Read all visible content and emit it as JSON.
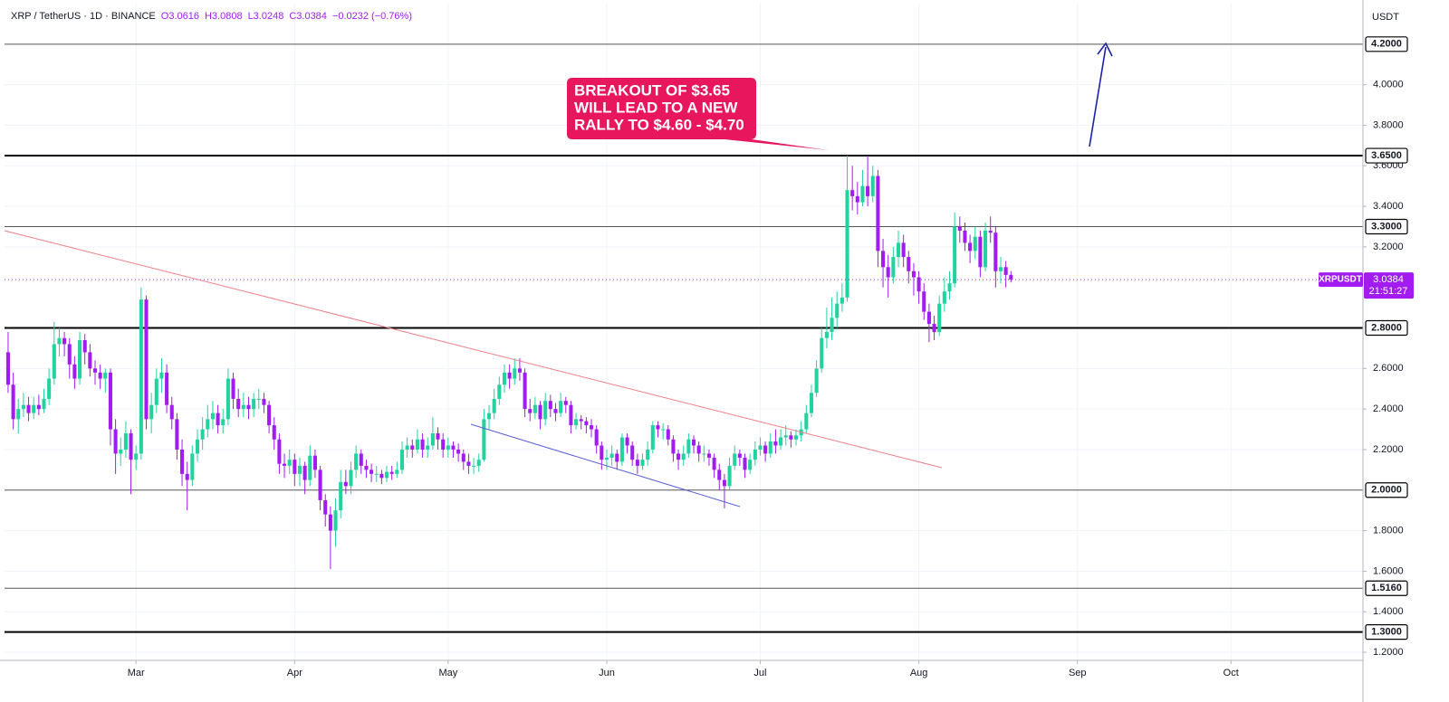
{
  "chart_data": {
    "type": "candlestick",
    "header": {
      "symbol": "XRP / TetherUS · 1D · BINANCE",
      "ohlc": [
        "O3.0616",
        "H3.0808",
        "L3.0248",
        "C3.0384",
        "−0.0232 (−0.76%)"
      ]
    },
    "currency": "USDT",
    "up_color": "#22d3a0",
    "down_color": "#a21cf2",
    "xlim": [
      -0.7,
      264.8
    ],
    "xticks": [
      {
        "value": 25,
        "label": "Mar"
      },
      {
        "value": 56,
        "label": "Apr"
      },
      {
        "value": 86,
        "label": "May"
      },
      {
        "value": 117,
        "label": "Jun"
      },
      {
        "value": 147,
        "label": "Jul"
      },
      {
        "value": 178,
        "label": "Aug"
      },
      {
        "value": 209,
        "label": "Sep"
      },
      {
        "value": 239,
        "label": "Oct"
      }
    ],
    "ylim": [
      1.16,
      4.4
    ],
    "yticks": [
      {
        "value": 1.2,
        "label": "1.2000"
      },
      {
        "value": 1.4,
        "label": "1.4000"
      },
      {
        "value": 1.6,
        "label": "1.6000"
      },
      {
        "value": 1.8,
        "label": "1.8000"
      },
      {
        "value": 2.2,
        "label": "2.2000"
      },
      {
        "value": 2.4,
        "label": "2.4000"
      },
      {
        "value": 2.6,
        "label": "2.6000"
      },
      {
        "value": 3.2,
        "label": "3.2000"
      },
      {
        "value": 3.4,
        "label": "3.4000"
      },
      {
        "value": 3.6,
        "label": "3.6000"
      },
      {
        "value": 3.8,
        "label": "3.8000"
      },
      {
        "value": 4.0,
        "label": "4.0000"
      }
    ],
    "levels": [
      {
        "value": 4.2,
        "label": "4.2000",
        "emphasis": false
      },
      {
        "value": 3.65,
        "label": "3.6500",
        "emphasis": true
      },
      {
        "value": 3.3,
        "label": "3.3000",
        "emphasis": false
      },
      {
        "value": 2.8,
        "label": "2.8000",
        "emphasis": true
      },
      {
        "value": 2.0,
        "label": "2.0000",
        "emphasis": false
      },
      {
        "value": 1.516,
        "label": "1.5160",
        "emphasis": false
      },
      {
        "value": 1.3,
        "label": "1.3000",
        "emphasis": true
      }
    ],
    "grid": true,
    "price_badge": {
      "symbol": "XRPUSDT",
      "countdown": "21:51:27"
    },
    "annotation": [
      "BREAKOUT OF $3.65",
      "WILL LEAD TO A NEW",
      "RALLY TO $4.60 - $4.70"
    ],
    "ohlc": [
      [
        2.68,
        2.78,
        2.48,
        2.52
      ],
      [
        2.52,
        2.58,
        2.3,
        2.35
      ],
      [
        2.35,
        2.45,
        2.28,
        2.4
      ],
      [
        2.4,
        2.48,
        2.36,
        2.42
      ],
      [
        2.42,
        2.46,
        2.34,
        2.38
      ],
      [
        2.38,
        2.46,
        2.35,
        2.42
      ],
      [
        2.42,
        2.47,
        2.37,
        2.4
      ],
      [
        2.4,
        2.5,
        2.38,
        2.45
      ],
      [
        2.45,
        2.6,
        2.42,
        2.55
      ],
      [
        2.55,
        2.83,
        2.52,
        2.72
      ],
      [
        2.72,
        2.8,
        2.66,
        2.75
      ],
      [
        2.75,
        2.78,
        2.66,
        2.72
      ],
      [
        2.72,
        2.75,
        2.55,
        2.62
      ],
      [
        2.62,
        2.66,
        2.5,
        2.55
      ],
      [
        2.55,
        2.78,
        2.52,
        2.74
      ],
      [
        2.74,
        2.77,
        2.62,
        2.68
      ],
      [
        2.68,
        2.72,
        2.56,
        2.6
      ],
      [
        2.6,
        2.64,
        2.52,
        2.58
      ],
      [
        2.58,
        2.62,
        2.5,
        2.55
      ],
      [
        2.55,
        2.6,
        2.48,
        2.58
      ],
      [
        2.58,
        2.6,
        2.22,
        2.3
      ],
      [
        2.3,
        2.35,
        2.08,
        2.18
      ],
      [
        2.18,
        2.26,
        2.12,
        2.2
      ],
      [
        2.2,
        2.34,
        2.16,
        2.28
      ],
      [
        2.28,
        2.3,
        1.98,
        2.15
      ],
      [
        2.15,
        2.22,
        2.1,
        2.18
      ],
      [
        2.18,
        3.0,
        2.15,
        2.94
      ],
      [
        2.94,
        2.96,
        2.3,
        2.35
      ],
      [
        2.35,
        2.48,
        2.28,
        2.42
      ],
      [
        2.42,
        2.6,
        2.38,
        2.55
      ],
      [
        2.55,
        2.65,
        2.48,
        2.58
      ],
      [
        2.58,
        2.62,
        2.38,
        2.42
      ],
      [
        2.42,
        2.46,
        2.3,
        2.35
      ],
      [
        2.35,
        2.38,
        2.15,
        2.2
      ],
      [
        2.2,
        2.25,
        2.02,
        2.08
      ],
      [
        2.08,
        2.14,
        1.9,
        2.05
      ],
      [
        2.05,
        2.22,
        2.02,
        2.18
      ],
      [
        2.18,
        2.3,
        2.14,
        2.25
      ],
      [
        2.25,
        2.36,
        2.2,
        2.3
      ],
      [
        2.3,
        2.42,
        2.26,
        2.35
      ],
      [
        2.35,
        2.44,
        2.3,
        2.38
      ],
      [
        2.38,
        2.42,
        2.28,
        2.32
      ],
      [
        2.32,
        2.4,
        2.28,
        2.35
      ],
      [
        2.35,
        2.6,
        2.32,
        2.55
      ],
      [
        2.55,
        2.58,
        2.4,
        2.45
      ],
      [
        2.45,
        2.5,
        2.36,
        2.4
      ],
      [
        2.4,
        2.48,
        2.36,
        2.42
      ],
      [
        2.42,
        2.46,
        2.35,
        2.4
      ],
      [
        2.4,
        2.48,
        2.36,
        2.45
      ],
      [
        2.45,
        2.5,
        2.4,
        2.45
      ],
      [
        2.45,
        2.48,
        2.38,
        2.42
      ],
      [
        2.42,
        2.44,
        2.28,
        2.32
      ],
      [
        2.32,
        2.36,
        2.2,
        2.25
      ],
      [
        2.25,
        2.28,
        2.08,
        2.13
      ],
      [
        2.13,
        2.18,
        2.06,
        2.12
      ],
      [
        2.12,
        2.2,
        2.08,
        2.15
      ],
      [
        2.15,
        2.18,
        2.02,
        2.08
      ],
      [
        2.08,
        2.16,
        2.02,
        2.12
      ],
      [
        2.12,
        2.14,
        1.98,
        2.05
      ],
      [
        2.05,
        2.22,
        2.02,
        2.17
      ],
      [
        2.17,
        2.2,
        2.06,
        2.1
      ],
      [
        2.1,
        2.12,
        1.9,
        1.95
      ],
      [
        1.95,
        1.98,
        1.82,
        1.88
      ],
      [
        1.88,
        1.92,
        1.61,
        1.8
      ],
      [
        1.8,
        1.96,
        1.72,
        1.9
      ],
      [
        1.9,
        2.1,
        1.86,
        2.04
      ],
      [
        2.04,
        2.1,
        1.98,
        2.02
      ],
      [
        2.02,
        2.14,
        1.98,
        2.1
      ],
      [
        2.1,
        2.22,
        2.06,
        2.18
      ],
      [
        2.18,
        2.2,
        2.08,
        2.12
      ],
      [
        2.12,
        2.15,
        2.06,
        2.1
      ],
      [
        2.1,
        2.13,
        2.04,
        2.08
      ],
      [
        2.08,
        2.12,
        2.04,
        2.08
      ],
      [
        2.08,
        2.1,
        2.03,
        2.06
      ],
      [
        2.06,
        2.12,
        2.04,
        2.09
      ],
      [
        2.09,
        2.12,
        2.05,
        2.08
      ],
      [
        2.08,
        2.14,
        2.06,
        2.1
      ],
      [
        2.1,
        2.24,
        2.08,
        2.2
      ],
      [
        2.2,
        2.26,
        2.16,
        2.22
      ],
      [
        2.22,
        2.25,
        2.16,
        2.2
      ],
      [
        2.2,
        2.3,
        2.18,
        2.25
      ],
      [
        2.25,
        2.28,
        2.16,
        2.2
      ],
      [
        2.2,
        2.26,
        2.16,
        2.22
      ],
      [
        2.22,
        2.36,
        2.2,
        2.28
      ],
      [
        2.28,
        2.31,
        2.2,
        2.25
      ],
      [
        2.25,
        2.28,
        2.16,
        2.2
      ],
      [
        2.2,
        2.26,
        2.16,
        2.22
      ],
      [
        2.22,
        2.24,
        2.16,
        2.2
      ],
      [
        2.2,
        2.23,
        2.14,
        2.18
      ],
      [
        2.18,
        2.2,
        2.1,
        2.14
      ],
      [
        2.14,
        2.18,
        2.08,
        2.12
      ],
      [
        2.12,
        2.16,
        2.08,
        2.12
      ],
      [
        2.12,
        2.18,
        2.09,
        2.15
      ],
      [
        2.15,
        2.4,
        2.14,
        2.35
      ],
      [
        2.35,
        2.42,
        2.3,
        2.38
      ],
      [
        2.38,
        2.5,
        2.35,
        2.45
      ],
      [
        2.45,
        2.56,
        2.42,
        2.52
      ],
      [
        2.52,
        2.62,
        2.48,
        2.58
      ],
      [
        2.58,
        2.62,
        2.5,
        2.55
      ],
      [
        2.55,
        2.65,
        2.52,
        2.6
      ],
      [
        2.6,
        2.65,
        2.54,
        2.58
      ],
      [
        2.58,
        2.6,
        2.36,
        2.4
      ],
      [
        2.4,
        2.45,
        2.34,
        2.38
      ],
      [
        2.38,
        2.46,
        2.35,
        2.42
      ],
      [
        2.42,
        2.44,
        2.3,
        2.35
      ],
      [
        2.35,
        2.48,
        2.32,
        2.44
      ],
      [
        2.44,
        2.47,
        2.36,
        2.4
      ],
      [
        2.4,
        2.43,
        2.34,
        2.38
      ],
      [
        2.38,
        2.48,
        2.36,
        2.44
      ],
      [
        2.44,
        2.46,
        2.38,
        2.42
      ],
      [
        2.42,
        2.44,
        2.28,
        2.32
      ],
      [
        2.32,
        2.38,
        2.3,
        2.35
      ],
      [
        2.35,
        2.37,
        2.3,
        2.34
      ],
      [
        2.34,
        2.36,
        2.28,
        2.32
      ],
      [
        2.32,
        2.35,
        2.26,
        2.3
      ],
      [
        2.3,
        2.32,
        2.18,
        2.22
      ],
      [
        2.22,
        2.24,
        2.1,
        2.15
      ],
      [
        2.15,
        2.2,
        2.1,
        2.16
      ],
      [
        2.16,
        2.22,
        2.12,
        2.18
      ],
      [
        2.18,
        2.2,
        2.1,
        2.14
      ],
      [
        2.14,
        2.28,
        2.12,
        2.26
      ],
      [
        2.26,
        2.28,
        2.18,
        2.22
      ],
      [
        2.22,
        2.24,
        2.12,
        2.15
      ],
      [
        2.15,
        2.18,
        2.08,
        2.12
      ],
      [
        2.12,
        2.18,
        2.1,
        2.15
      ],
      [
        2.15,
        2.24,
        2.12,
        2.2
      ],
      [
        2.2,
        2.34,
        2.18,
        2.32
      ],
      [
        2.32,
        2.34,
        2.26,
        2.3
      ],
      [
        2.3,
        2.33,
        2.25,
        2.3
      ],
      [
        2.3,
        2.32,
        2.22,
        2.25
      ],
      [
        2.25,
        2.27,
        2.14,
        2.18
      ],
      [
        2.18,
        2.2,
        2.1,
        2.15
      ],
      [
        2.15,
        2.22,
        2.12,
        2.18
      ],
      [
        2.18,
        2.28,
        2.16,
        2.25
      ],
      [
        2.25,
        2.27,
        2.18,
        2.22
      ],
      [
        2.22,
        2.24,
        2.14,
        2.18
      ],
      [
        2.18,
        2.22,
        2.14,
        2.18
      ],
      [
        2.18,
        2.2,
        2.12,
        2.16
      ],
      [
        2.16,
        2.18,
        2.06,
        2.1
      ],
      [
        2.1,
        2.13,
        2.0,
        2.05
      ],
      [
        2.05,
        2.08,
        1.91,
        2.02
      ],
      [
        2.02,
        2.16,
        2.0,
        2.12
      ],
      [
        2.12,
        2.22,
        2.1,
        2.18
      ],
      [
        2.18,
        2.2,
        2.12,
        2.16
      ],
      [
        2.16,
        2.18,
        2.06,
        2.1
      ],
      [
        2.1,
        2.18,
        2.08,
        2.15
      ],
      [
        2.15,
        2.24,
        2.12,
        2.2
      ],
      [
        2.2,
        2.26,
        2.17,
        2.22
      ],
      [
        2.22,
        2.24,
        2.14,
        2.18
      ],
      [
        2.18,
        2.28,
        2.16,
        2.24
      ],
      [
        2.24,
        2.3,
        2.18,
        2.22
      ],
      [
        2.22,
        2.3,
        2.2,
        2.26
      ],
      [
        2.26,
        2.32,
        2.22,
        2.27
      ],
      [
        2.27,
        2.29,
        2.21,
        2.25
      ],
      [
        2.25,
        2.3,
        2.22,
        2.27
      ],
      [
        2.27,
        2.34,
        2.24,
        2.3
      ],
      [
        2.3,
        2.42,
        2.28,
        2.38
      ],
      [
        2.38,
        2.52,
        2.36,
        2.48
      ],
      [
        2.48,
        2.64,
        2.46,
        2.6
      ],
      [
        2.6,
        2.8,
        2.58,
        2.75
      ],
      [
        2.75,
        2.9,
        2.7,
        2.78
      ],
      [
        2.78,
        2.95,
        2.74,
        2.85
      ],
      [
        2.85,
        2.98,
        2.8,
        2.92
      ],
      [
        2.92,
        3.02,
        2.88,
        2.95
      ],
      [
        2.95,
        3.65,
        2.93,
        3.48
      ],
      [
        3.48,
        3.6,
        3.38,
        3.45
      ],
      [
        3.45,
        3.52,
        3.36,
        3.42
      ],
      [
        3.42,
        3.58,
        3.4,
        3.5
      ],
      [
        3.5,
        3.65,
        3.4,
        3.45
      ],
      [
        3.45,
        3.6,
        3.42,
        3.55
      ],
      [
        3.55,
        3.58,
        3.1,
        3.18
      ],
      [
        3.18,
        3.24,
        3.0,
        3.1
      ],
      [
        3.1,
        3.16,
        2.95,
        3.05
      ],
      [
        3.05,
        3.2,
        3.02,
        3.15
      ],
      [
        3.15,
        3.28,
        3.1,
        3.22
      ],
      [
        3.22,
        3.26,
        3.1,
        3.15
      ],
      [
        3.15,
        3.18,
        3.02,
        3.08
      ],
      [
        3.08,
        3.12,
        2.96,
        3.05
      ],
      [
        3.05,
        3.08,
        2.92,
        2.98
      ],
      [
        2.98,
        3.02,
        2.84,
        2.88
      ],
      [
        2.88,
        2.92,
        2.73,
        2.82
      ],
      [
        2.82,
        2.86,
        2.74,
        2.78
      ],
      [
        2.78,
        2.96,
        2.76,
        2.92
      ],
      [
        2.92,
        3.05,
        2.88,
        2.98
      ],
      [
        2.98,
        3.08,
        2.94,
        3.02
      ],
      [
        3.02,
        3.37,
        3.0,
        3.3
      ],
      [
        3.3,
        3.35,
        3.22,
        3.28
      ],
      [
        3.28,
        3.32,
        3.18,
        3.22
      ],
      [
        3.22,
        3.26,
        3.12,
        3.18
      ],
      [
        3.18,
        3.3,
        3.14,
        3.25
      ],
      [
        3.25,
        3.28,
        3.05,
        3.1
      ],
      [
        3.1,
        3.32,
        3.08,
        3.28
      ],
      [
        3.28,
        3.35,
        3.22,
        3.27
      ],
      [
        3.27,
        3.3,
        3.0,
        3.08
      ],
      [
        3.08,
        3.15,
        3.02,
        3.1
      ],
      [
        3.1,
        3.13,
        3.0,
        3.0616
      ],
      [
        3.0616,
        3.0808,
        3.0248,
        3.0384
      ]
    ]
  }
}
